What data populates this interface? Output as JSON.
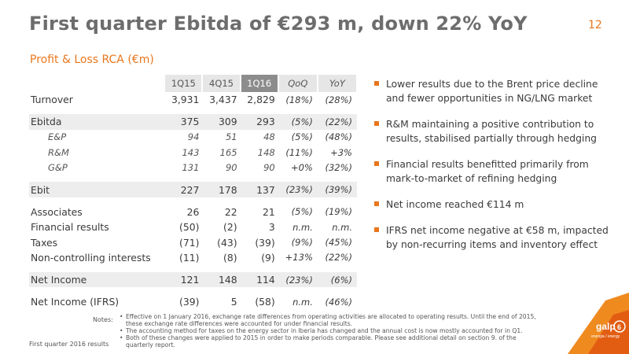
{
  "title": "First quarter Ebitda of €293 m, down 22% YoY",
  "page_number": "12",
  "subtitle": "Profit & Loss RCA (€m)",
  "table": {
    "headers": [
      "1Q15",
      "4Q15",
      "1Q16",
      "QoQ",
      "YoY"
    ],
    "groups": [
      [
        {
          "label": "Turnover",
          "values": [
            "3,931",
            "3,437",
            "2,829"
          ],
          "qoq": "(18%)",
          "yoy": "(28%)"
        }
      ],
      [
        {
          "label": "Ebitda",
          "values": [
            "375",
            "309",
            "293"
          ],
          "qoq": "(5%)",
          "yoy": "(22%)"
        },
        {
          "label": "E&P",
          "values": [
            "94",
            "51",
            "48"
          ],
          "qoq": "(5%)",
          "yoy": "(48%)"
        },
        {
          "label": "R&M",
          "values": [
            "143",
            "165",
            "148"
          ],
          "qoq": "(11%)",
          "yoy": "+3%"
        },
        {
          "label": "G&P",
          "values": [
            "131",
            "90",
            "90"
          ],
          "qoq": "+0%",
          "yoy": "(32%)"
        }
      ],
      [
        {
          "label": "Ebit",
          "values": [
            "227",
            "178",
            "137"
          ],
          "qoq": "(23%)",
          "yoy": "(39%)"
        }
      ],
      [
        {
          "label": "Associates",
          "values": [
            "26",
            "22",
            "21"
          ],
          "qoq": "(5%)",
          "yoy": "(19%)"
        },
        {
          "label": "Financial results",
          "values": [
            "(50)",
            "(2)",
            "3"
          ],
          "qoq": "n.m.",
          "yoy": "n.m."
        },
        {
          "label": "Taxes",
          "values": [
            "(71)",
            "(43)",
            "(39)"
          ],
          "qoq": "(9%)",
          "yoy": "(45%)"
        },
        {
          "label": "Non-controlling interests",
          "values": [
            "(11)",
            "(8)",
            "(9)"
          ],
          "qoq": "+13%",
          "yoy": "(22%)"
        }
      ],
      [
        {
          "label": "Net Income",
          "values": [
            "121",
            "148",
            "114"
          ],
          "qoq": "(23%)",
          "yoy": "(6%)"
        }
      ],
      [
        {
          "label": "Net Income (IFRS)",
          "values": [
            "(39)",
            "5",
            "(58)"
          ],
          "qoq": "n.m.",
          "yoy": "(46%)"
        }
      ]
    ]
  },
  "bullets": [
    "Lower results due to the Brent price decline and fewer opportunities in NG/LNG market",
    "R&M maintaining a positive contribution to results, stabilised partially through hedging",
    "Financial results benefitted primarily from mark-to-market of refining hedging",
    "Net income reached €114 m",
    "IFRS net income negative at €58 m, impacted by non-recurring items and inventory effect"
  ],
  "notes_label": "Notes:",
  "notes": [
    "Effective on 1 January 2016, exchange rate differences from operating activities are allocated to operating results. Until the end of 2015, these exchange rate differences were accounted for under financial results.",
    "The accounting method for taxes on the energy sector in Iberia has changed and the annual cost is now mostly accounted for in Q1.",
    "Both of these changes were applied to 2015 in order to make periods comparable. Please see additional detail on section 9. of the quarterly report."
  ],
  "footer_left": "First quarter 2016 results",
  "logo": {
    "brand": "galp",
    "tagline": "energia / energy",
    "number": "6"
  },
  "colors": {
    "accent": "#e8761c",
    "title": "#6d6d6d",
    "header_current": "#8c8c8c"
  }
}
